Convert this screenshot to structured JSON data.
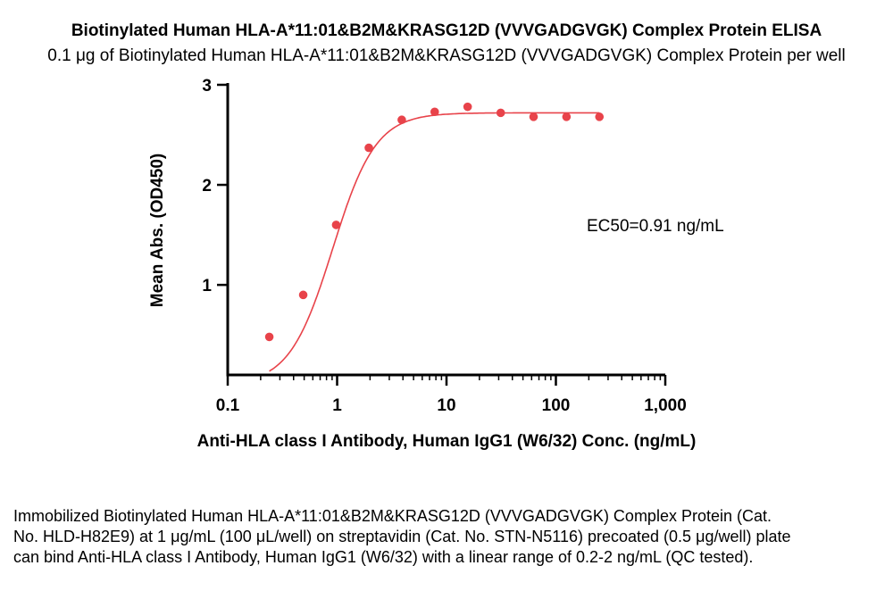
{
  "chart_data": {
    "type": "scatter",
    "title": "Biotinylated Human HLA-A*11:01&B2M&KRASG12D (VVVGADGVGK) Complex Protein ELISA",
    "subtitle": "0.1 μg of Biotinylated Human HLA-A*11:01&B2M&KRASG12D (VVVGADGVGK) Complex Protein per well",
    "xlabel": "Anti-HLA class I Antibody, Human IgG1 (W6/32) Conc. (ng/mL)",
    "ylabel": "Mean Abs. (OD450)",
    "x_scale": "log",
    "xlim": [
      0.1,
      1000
    ],
    "ylim": [
      0.1,
      3
    ],
    "x_ticks": [
      0.1,
      1,
      10,
      100,
      1000
    ],
    "x_tick_labels": [
      "0.1",
      "1",
      "10",
      "100",
      "1,000"
    ],
    "y_ticks": [
      1,
      2,
      3
    ],
    "y_tick_labels": [
      "1",
      "2",
      "3"
    ],
    "grid": false,
    "color": "#e8434a",
    "series": [
      {
        "x": [
          0.24,
          0.49,
          0.98,
          1.95,
          3.9,
          7.8,
          15.6,
          31.3,
          62.5,
          125,
          250
        ],
        "y": [
          0.48,
          0.9,
          1.6,
          2.37,
          2.65,
          2.73,
          2.78,
          2.72,
          2.68,
          2.68,
          2.68
        ],
        "fit": {
          "bottom": 0.0,
          "top": 2.72,
          "ec50": 0.91,
          "hill": 2.2
        }
      }
    ],
    "annotation": "EC50=0.91 ng/mL"
  },
  "caption": "Immobilized Biotinylated Human HLA-A*11:01&B2M&KRASG12D (VVVGADGVGK) Complex Protein (Cat. No. HLD-H82E9) at 1 μg/mL (100 μL/well) on streptavidin (Cat. No. STN-N5116) precoated (0.5 μg/well) plate can bind Anti-HLA class I Antibody, Human IgG1 (W6/32) with a linear range of 0.2-2 ng/mL (QC tested)."
}
